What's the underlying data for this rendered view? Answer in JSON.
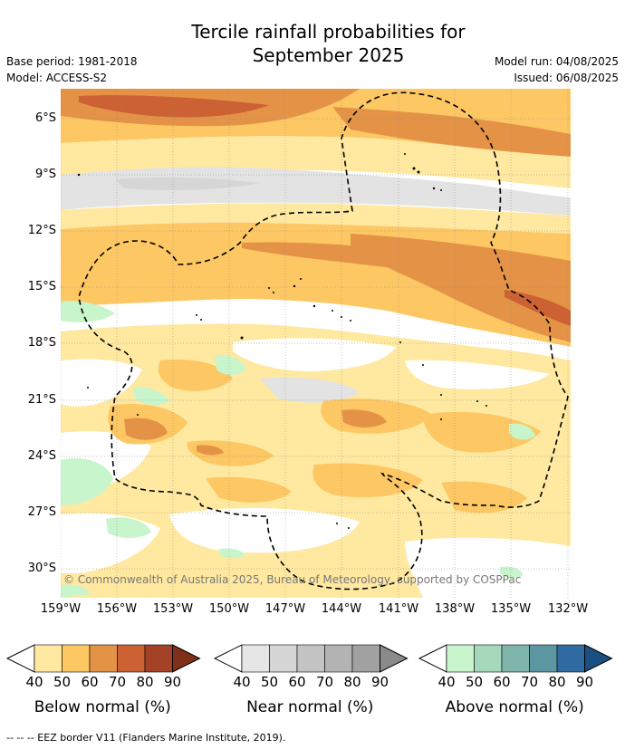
{
  "title_line1": "Tercile rainfall probabilities for",
  "title_line2": "September 2025",
  "base_period": "Base period: 1981-2018",
  "model": "Model: ACCESS-S2",
  "model_run": "Model run: 04/08/2025",
  "issued": "Issued: 06/08/2025",
  "copyright": "© Commonwealth of Australia 2025, Bureau of Meteorology, supported by COSPPac",
  "footer": "--  --  -- EEZ border V11 (Flanders Marine Institute, 2019).",
  "lat_labels": [
    "6°S",
    "9°S",
    "12°S",
    "15°S",
    "18°S",
    "21°S",
    "24°S",
    "27°S",
    "30°S"
  ],
  "lon_labels": [
    "159°W",
    "156°W",
    "153°W",
    "150°W",
    "147°W",
    "144°W",
    "141°W",
    "138°W",
    "135°W",
    "132°W"
  ],
  "colorbars": [
    {
      "title": "Below normal (%)",
      "ticks": [
        "40",
        "50",
        "60",
        "70",
        "80",
        "90"
      ],
      "colors": [
        "#ffe8a0",
        "#fdc763",
        "#e49346",
        "#cc6133",
        "#a34226",
        "#7f2f1a"
      ]
    },
    {
      "title": "Near normal (%)",
      "ticks": [
        "40",
        "50",
        "60",
        "70",
        "80",
        "90"
      ],
      "colors": [
        "#e6e6e6",
        "#d6d6d6",
        "#c4c4c4",
        "#b3b3b3",
        "#a1a1a1",
        "#8a8a8a"
      ]
    },
    {
      "title": "Above normal (%)",
      "ticks": [
        "40",
        "50",
        "60",
        "70",
        "80",
        "90"
      ],
      "colors": [
        "#c8f5cc",
        "#a6d9bb",
        "#7fb5ab",
        "#5d97a2",
        "#2f6aa0",
        "#1b4f82"
      ]
    }
  ],
  "colors": {
    "below_40": "#ffe8a0",
    "below_50": "#fdc763",
    "below_60": "#e49346",
    "below_70": "#cc6133",
    "near_40": "#e3e3e3",
    "above_40": "#c8f5cc"
  }
}
